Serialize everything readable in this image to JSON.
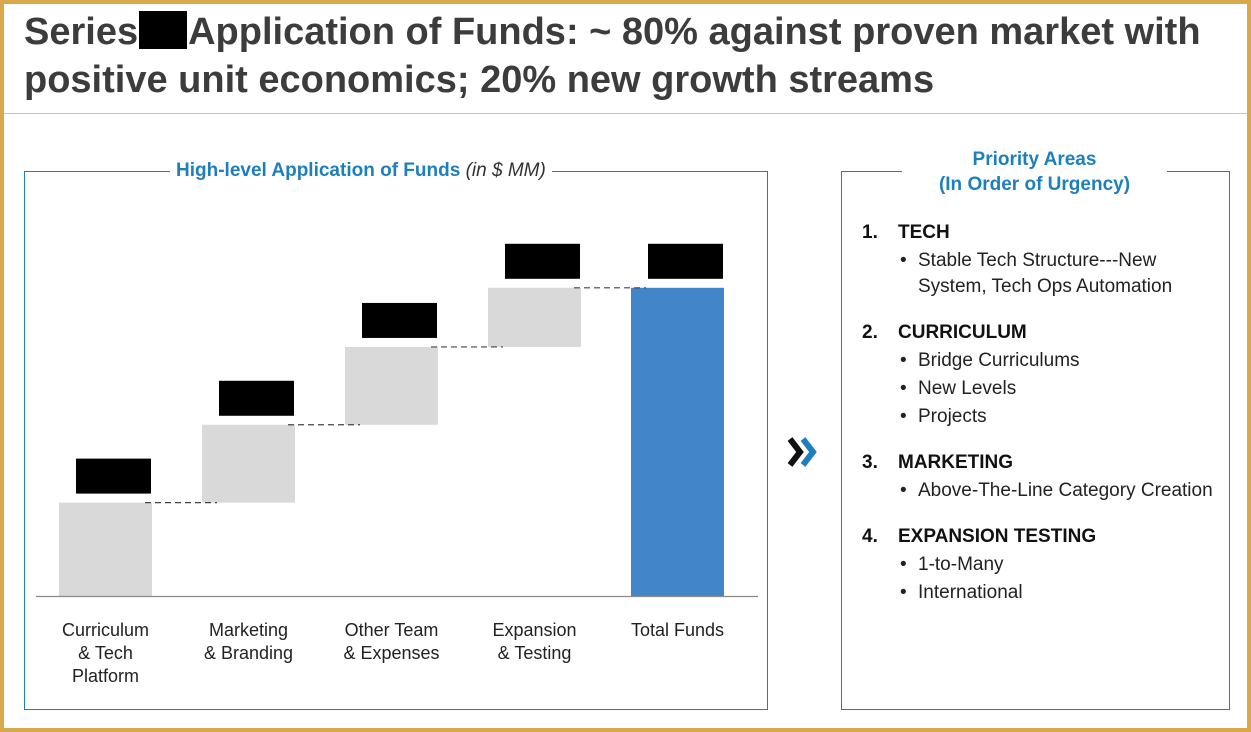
{
  "slide": {
    "title_part1": "Series",
    "title_part2": "Application of Funds: ~ 80% against proven market with positive unit economics; 20% new growth streams"
  },
  "chart_heading": {
    "main": "High-level Application of Funds",
    "unit": "(in $ MM)"
  },
  "chart_data": {
    "type": "waterfall",
    "title": "High-level Application of Funds (in $ MM)",
    "categories": [
      "Curriculum\n& Tech\nPlatform",
      "Marketing\n& Branding",
      "Other Team\n& Expenses",
      "Expansion\n& Testing",
      "Total Funds"
    ],
    "values": [
      3.0,
      2.5,
      2.5,
      1.9,
      9.9
    ],
    "total_index": 4,
    "value_labels_redacted": true,
    "connector_lines": true,
    "ylim": [
      0,
      10.6
    ],
    "colors": {
      "increment": "#d9d9d9",
      "total": "#4285c9",
      "redaction": "#000000",
      "axis": "#8a8a8a",
      "connector": "#444444"
    }
  },
  "priority": {
    "heading_line1": "Priority Areas",
    "heading_line2": "(In Order of Urgency)",
    "items": [
      {
        "num": "1.",
        "title": "TECH",
        "bullets": [
          "Stable Tech Structure---New System, Tech Ops Automation"
        ]
      },
      {
        "num": "2.",
        "title": "CURRICULUM",
        "bullets": [
          "Bridge Curriculums",
          "New Levels",
          "Projects"
        ]
      },
      {
        "num": "3.",
        "title": "MARKETING",
        "bullets": [
          "Above-The-Line Category Creation"
        ]
      },
      {
        "num": "4.",
        "title": "EXPANSION TESTING",
        "bullets": [
          "1-to-Many",
          "International"
        ]
      }
    ]
  },
  "icons": {
    "arrow": "chevron-double-right-icon",
    "accent": "#1e7fbd"
  }
}
